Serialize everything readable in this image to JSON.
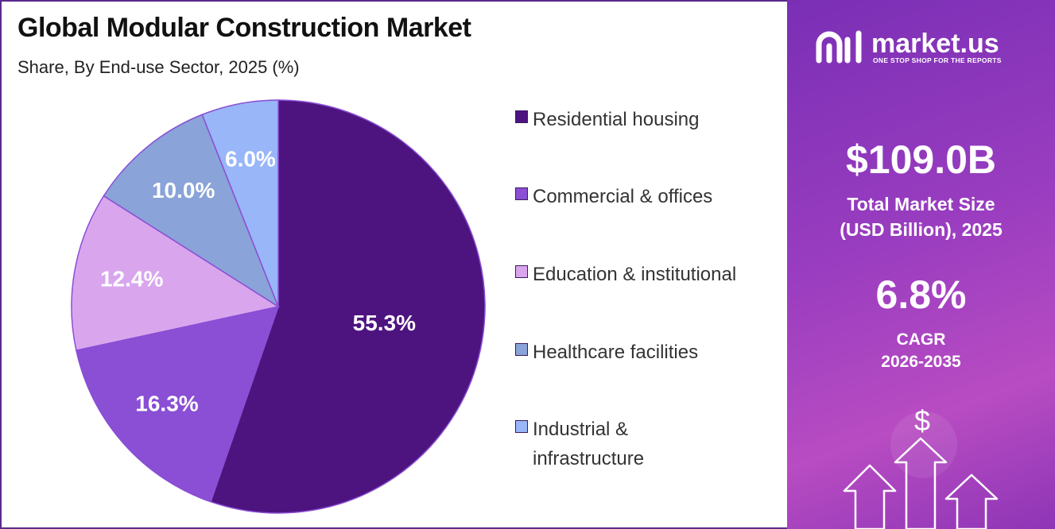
{
  "chart_data": {
    "type": "pie",
    "title": "Global Modular Construction Market",
    "subtitle": "Share, By End-use Sector, 2025 (%)",
    "slices": [
      {
        "label": "Residential housing",
        "value": 55.3,
        "display": "55.3%",
        "color": "#4d1480"
      },
      {
        "label": "Commercial & offices",
        "value": 16.3,
        "display": "16.3%",
        "color": "#8a4fd4"
      },
      {
        "label": "Education & institutional",
        "value": 12.4,
        "display": "12.4%",
        "color": "#d9a6ee"
      },
      {
        "label": "Healthcare facilities",
        "value": 10.0,
        "display": "10.0%",
        "color": "#8aa3d8"
      },
      {
        "label": "Industrial & infrastructure",
        "value": 6.0,
        "display": "6.0%",
        "color": "#98b6f8"
      }
    ],
    "legend_position": "right"
  },
  "legend": [
    {
      "label": "Residential housing",
      "lines": [
        "Residential housing"
      ]
    },
    {
      "label": "Commercial & offices",
      "lines": [
        "Commercial & offices"
      ]
    },
    {
      "label": "Education & institutional",
      "lines": [
        "Education & institutional"
      ]
    },
    {
      "label": "Healthcare facilities",
      "lines": [
        "Healthcare facilities"
      ]
    },
    {
      "label": "Industrial & infrastructure",
      "lines": [
        "Industrial &",
        "infrastructure"
      ]
    }
  ],
  "sidebar": {
    "brand_name": "market.us",
    "brand_tagline": "ONE STOP SHOP FOR THE REPORTS",
    "market_size_value": "$109.0B",
    "market_size_label_line1": "Total Market Size",
    "market_size_label_line2": "(USD Billion), 2025",
    "cagr_value": "6.8%",
    "cagr_label_line1": "CAGR",
    "cagr_label_line2": "2026-2035",
    "dollar_symbol": "$"
  }
}
